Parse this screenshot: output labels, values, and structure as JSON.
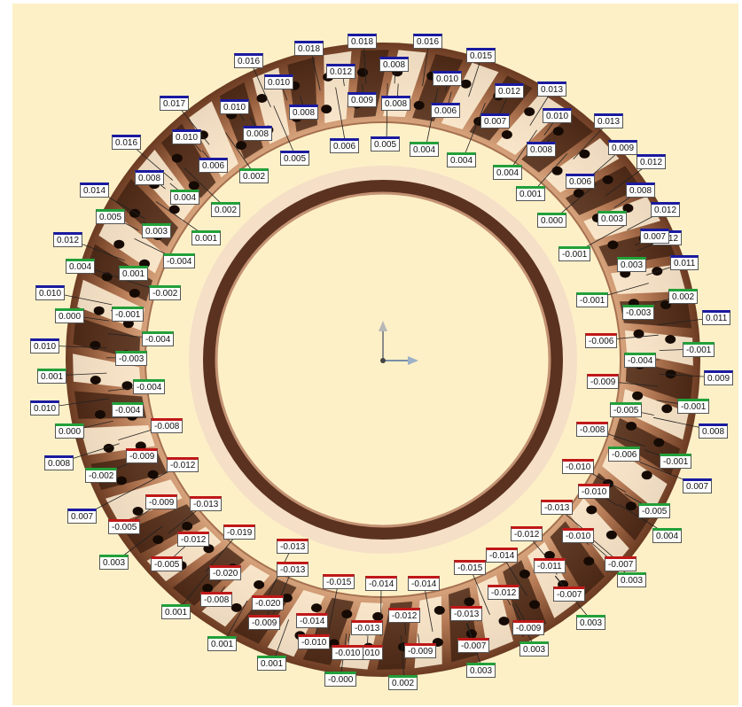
{
  "view": {
    "ring_colors": {
      "background": "#fdf0c7",
      "ring_light": "#e3b48c",
      "ring_mid": "#b57a55",
      "ring_dark": "#4a2a18",
      "blade_light": "#fff4dc",
      "hole": "#1a0d06",
      "label_high": "#1a1aa0",
      "label_mid": "#22a03a",
      "label_low": "#c01818"
    },
    "axis_triad_icon": "axis-triad-icon"
  },
  "deviation_labels": [
    {
      "id": "l1",
      "text": "0.018",
      "color": "blue"
    },
    {
      "id": "l2",
      "text": "0.018",
      "color": "blue"
    },
    {
      "id": "l3",
      "text": "0.016",
      "color": "blue"
    },
    {
      "id": "l4",
      "text": "0.016",
      "color": "blue"
    },
    {
      "id": "l5",
      "text": "0.012",
      "color": "blue"
    },
    {
      "id": "l6",
      "text": "0.008",
      "color": "blue"
    },
    {
      "id": "l7",
      "text": "0.015",
      "color": "blue"
    },
    {
      "id": "l8",
      "text": "0.010",
      "color": "blue"
    },
    {
      "id": "l9",
      "text": "0.010",
      "color": "blue"
    },
    {
      "id": "l10",
      "text": "0.012",
      "color": "blue"
    },
    {
      "id": "l11",
      "text": "0.013",
      "color": "blue"
    },
    {
      "id": "l12",
      "text": "0.017",
      "color": "blue"
    },
    {
      "id": "l13",
      "text": "0.010",
      "color": "blue"
    },
    {
      "id": "l14",
      "text": "0.008",
      "color": "blue"
    },
    {
      "id": "l15",
      "text": "0.009",
      "color": "blue"
    },
    {
      "id": "l16",
      "text": "0.008",
      "color": "blue"
    },
    {
      "id": "l17",
      "text": "0.006",
      "color": "blue"
    },
    {
      "id": "l18",
      "text": "0.007",
      "color": "blue"
    },
    {
      "id": "l19",
      "text": "0.010",
      "color": "blue"
    },
    {
      "id": "l20",
      "text": "0.013",
      "color": "blue"
    },
    {
      "id": "l21",
      "text": "0.008",
      "color": "blue"
    },
    {
      "id": "l22",
      "text": "0.016",
      "color": "blue"
    },
    {
      "id": "l23",
      "text": "0.010",
      "color": "blue"
    },
    {
      "id": "l24",
      "text": "0.006",
      "color": "blue"
    },
    {
      "id": "l25",
      "text": "0.005",
      "color": "blue"
    },
    {
      "id": "l26",
      "text": "0.005",
      "color": "blue"
    },
    {
      "id": "l27",
      "text": "0.004",
      "color": "green"
    },
    {
      "id": "l28",
      "text": "0.004",
      "color": "green"
    },
    {
      "id": "l29",
      "text": "0.004",
      "color": "green"
    },
    {
      "id": "l30",
      "text": "0.008",
      "color": "blue"
    },
    {
      "id": "l31",
      "text": "0.009",
      "color": "blue"
    },
    {
      "id": "l32",
      "text": "0.012",
      "color": "blue"
    },
    {
      "id": "l33",
      "text": "0.006",
      "color": "blue"
    },
    {
      "id": "l34",
      "text": "0.002",
      "color": "green"
    },
    {
      "id": "l35",
      "text": "0.008",
      "color": "blue"
    },
    {
      "id": "l36",
      "text": "0.006",
      "color": "blue"
    },
    {
      "id": "l37",
      "text": "0.014",
      "color": "blue"
    },
    {
      "id": "l38",
      "text": "0.004",
      "color": "green"
    },
    {
      "id": "l39",
      "text": "0.001",
      "color": "green"
    },
    {
      "id": "l40",
      "text": "0.008",
      "color": "blue"
    },
    {
      "id": "l41",
      "text": "0.002",
      "color": "green"
    },
    {
      "id": "l42",
      "text": "0.005",
      "color": "green"
    },
    {
      "id": "l43",
      "text": "0.003",
      "color": "green"
    },
    {
      "id": "l44",
      "text": "0.012",
      "color": "blue"
    },
    {
      "id": "l45",
      "text": "0.000",
      "color": "green"
    },
    {
      "id": "l46",
      "text": "0.003",
      "color": "green"
    },
    {
      "id": "l47",
      "text": "0.001",
      "color": "green"
    },
    {
      "id": "l48",
      "text": "0.012",
      "color": "blue"
    },
    {
      "id": "l49",
      "text": "0.012",
      "color": "blue"
    },
    {
      "id": "l50",
      "text": "0.007",
      "color": "blue"
    },
    {
      "id": "l51",
      "text": "-0.004",
      "color": "green"
    },
    {
      "id": "l52",
      "text": "0.004",
      "color": "green"
    },
    {
      "id": "l53",
      "text": "-0.001",
      "color": "green"
    },
    {
      "id": "l54",
      "text": "0.003",
      "color": "green"
    },
    {
      "id": "l55",
      "text": "0.011",
      "color": "blue"
    },
    {
      "id": "l56",
      "text": "0.001",
      "color": "green"
    },
    {
      "id": "l57",
      "text": "0.010",
      "color": "blue"
    },
    {
      "id": "l58",
      "text": "-0.002",
      "color": "green"
    },
    {
      "id": "l59",
      "text": "-0.001",
      "color": "green"
    },
    {
      "id": "l60",
      "text": "0.002",
      "color": "green"
    },
    {
      "id": "l61",
      "text": "0.000",
      "color": "green"
    },
    {
      "id": "l62",
      "text": "-0.001",
      "color": "green"
    },
    {
      "id": "l63",
      "text": "-0.003",
      "color": "green"
    },
    {
      "id": "l64",
      "text": "0.011",
      "color": "blue"
    },
    {
      "id": "l65",
      "text": "0.010",
      "color": "blue"
    },
    {
      "id": "l66",
      "text": "-0.004",
      "color": "green"
    },
    {
      "id": "l67",
      "text": "-0.006",
      "color": "red"
    },
    {
      "id": "l68",
      "text": "-0.001",
      "color": "green"
    },
    {
      "id": "l69",
      "text": "0.001",
      "color": "green"
    },
    {
      "id": "l70",
      "text": "-0.003",
      "color": "green"
    },
    {
      "id": "l71",
      "text": "-0.004",
      "color": "green"
    },
    {
      "id": "l72",
      "text": "-0.004",
      "color": "green"
    },
    {
      "id": "l73",
      "text": "-0.009",
      "color": "red"
    },
    {
      "id": "l74",
      "text": "0.009",
      "color": "blue"
    },
    {
      "id": "l75",
      "text": "0.010",
      "color": "blue"
    },
    {
      "id": "l76",
      "text": "-0.004",
      "color": "green"
    },
    {
      "id": "l77",
      "text": "-0.005",
      "color": "green"
    },
    {
      "id": "l78",
      "text": "-0.001",
      "color": "green"
    },
    {
      "id": "l79",
      "text": "0.000",
      "color": "green"
    },
    {
      "id": "l80",
      "text": "-0.008",
      "color": "red"
    },
    {
      "id": "l81",
      "text": "-0.008",
      "color": "red"
    },
    {
      "id": "l82",
      "text": "0.008",
      "color": "blue"
    },
    {
      "id": "l83",
      "text": "-0.009",
      "color": "red"
    },
    {
      "id": "l84",
      "text": "-0.006",
      "color": "green"
    },
    {
      "id": "l85",
      "text": "0.008",
      "color": "blue"
    },
    {
      "id": "l86",
      "text": "-0.012",
      "color": "red"
    },
    {
      "id": "l87",
      "text": "-0.010",
      "color": "red"
    },
    {
      "id": "l88",
      "text": "-0.001",
      "color": "green"
    },
    {
      "id": "l89",
      "text": "-0.002",
      "color": "green"
    },
    {
      "id": "l90",
      "text": "-0.009",
      "color": "red"
    },
    {
      "id": "l91",
      "text": "-0.010",
      "color": "red"
    },
    {
      "id": "l92",
      "text": "0.007",
      "color": "blue"
    },
    {
      "id": "l93",
      "text": "-0.013",
      "color": "red"
    },
    {
      "id": "l94",
      "text": "-0.013",
      "color": "red"
    },
    {
      "id": "l95",
      "text": "-0.005",
      "color": "green"
    },
    {
      "id": "l96",
      "text": "0.007",
      "color": "blue"
    },
    {
      "id": "l97",
      "text": "-0.005",
      "color": "red"
    },
    {
      "id": "l98",
      "text": "-0.012",
      "color": "red"
    },
    {
      "id": "l99",
      "text": "-0.010",
      "color": "red"
    },
    {
      "id": "l100",
      "text": "0.004",
      "color": "green"
    },
    {
      "id": "l101",
      "text": "-0.019",
      "color": "red"
    },
    {
      "id": "l102",
      "text": "-0.012",
      "color": "red"
    },
    {
      "id": "l103",
      "text": "-0.014",
      "color": "red"
    },
    {
      "id": "l104",
      "text": "-0.013",
      "color": "red"
    },
    {
      "id": "l105",
      "text": "0.003",
      "color": "green"
    },
    {
      "id": "l106",
      "text": "-0.005",
      "color": "red"
    },
    {
      "id": "l107",
      "text": "-0.020",
      "color": "red"
    },
    {
      "id": "l108",
      "text": "-0.015",
      "color": "red"
    },
    {
      "id": "l109",
      "text": "-0.011",
      "color": "red"
    },
    {
      "id": "l110",
      "text": "-0.007",
      "color": "red"
    },
    {
      "id": "l111",
      "text": "-0.013",
      "color": "red"
    },
    {
      "id": "l112",
      "text": "-0.015",
      "color": "red"
    },
    {
      "id": "l113",
      "text": "-0.014",
      "color": "red"
    },
    {
      "id": "l114",
      "text": "-0.014",
      "color": "red"
    },
    {
      "id": "l115",
      "text": "0.003",
      "color": "green"
    },
    {
      "id": "l116",
      "text": "-0.012",
      "color": "red"
    },
    {
      "id": "l117",
      "text": "-0.007",
      "color": "red"
    },
    {
      "id": "l118",
      "text": "-0.008",
      "color": "red"
    },
    {
      "id": "l119",
      "text": "-0.020",
      "color": "red"
    },
    {
      "id": "l120",
      "text": "0.001",
      "color": "green"
    },
    {
      "id": "l121",
      "text": "-0.014",
      "color": "red"
    },
    {
      "id": "l122",
      "text": "-0.012",
      "color": "red"
    },
    {
      "id": "l123",
      "text": "-0.013",
      "color": "red"
    },
    {
      "id": "l124",
      "text": "-0.009",
      "color": "red"
    },
    {
      "id": "l125",
      "text": "0.003",
      "color": "green"
    },
    {
      "id": "l126",
      "text": "-0.009",
      "color": "red"
    },
    {
      "id": "l127",
      "text": "-0.013",
      "color": "red"
    },
    {
      "id": "l128",
      "text": "-0.010",
      "color": "red"
    },
    {
      "id": "l129",
      "text": "-0.009",
      "color": "red"
    },
    {
      "id": "l130",
      "text": "-0.007",
      "color": "red"
    },
    {
      "id": "l131",
      "text": "0.003",
      "color": "green"
    },
    {
      "id": "l132",
      "text": "0.001",
      "color": "green"
    },
    {
      "id": "l133",
      "text": "-0.010",
      "color": "red"
    },
    {
      "id": "l134",
      "text": "-0.010",
      "color": "red"
    },
    {
      "id": "l135",
      "text": "0.003",
      "color": "green"
    },
    {
      "id": "l136",
      "text": "0.001",
      "color": "green"
    },
    {
      "id": "l137",
      "text": "-0.000",
      "color": "green"
    },
    {
      "id": "l138",
      "text": "0.002",
      "color": "green"
    }
  ]
}
